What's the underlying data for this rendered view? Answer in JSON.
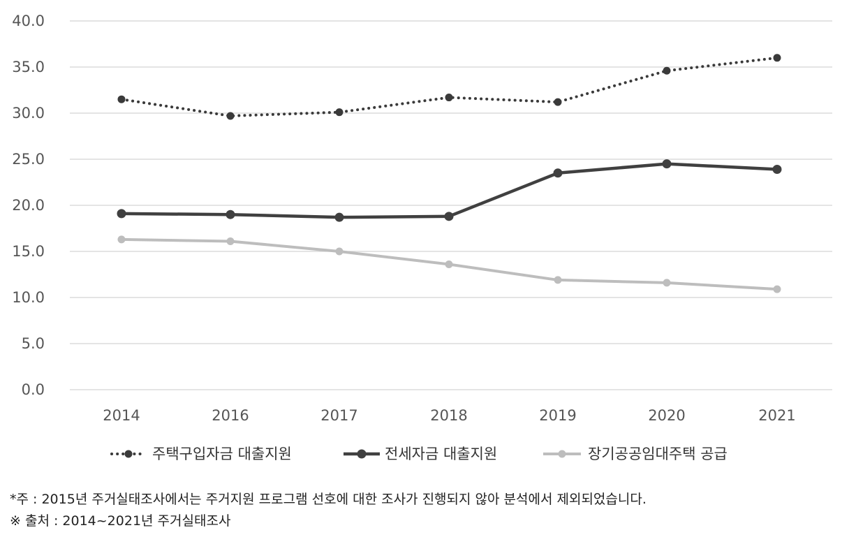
{
  "chart_data": {
    "type": "line",
    "categories": [
      "2014",
      "2016",
      "2017",
      "2018",
      "2019",
      "2020",
      "2021"
    ],
    "ylim": [
      0,
      40
    ],
    "yticks": [
      "0.0",
      "5.0",
      "10.0",
      "15.0",
      "20.0",
      "25.0",
      "30.0",
      "35.0",
      "40.0"
    ],
    "grid": "horizontal",
    "legend_position": "bottom",
    "series": [
      {
        "name": "주택구입자금 대출지원",
        "values": [
          31.5,
          29.7,
          30.1,
          31.7,
          31.2,
          34.6,
          36.0
        ],
        "color": "#3a3a3a",
        "style": "dotted"
      },
      {
        "name": "전세자금 대출지원",
        "values": [
          19.1,
          19.0,
          18.7,
          18.8,
          23.5,
          24.5,
          23.9
        ],
        "color": "#404040",
        "style": "solid"
      },
      {
        "name": "장기공공임대주택 공급",
        "values": [
          16.3,
          16.1,
          15.0,
          13.6,
          11.9,
          11.6,
          10.9
        ],
        "color": "#bdbdbd",
        "style": "solid"
      }
    ]
  },
  "notes": {
    "note1": "*주 : 2015년 주거실태조사에서는 주거지원 프로그램 선호에 대한 조사가 진행되지 않아 분석에서 제외되었습니다.",
    "note2": "※ 출처 : 2014~2021년 주거실태조사"
  }
}
